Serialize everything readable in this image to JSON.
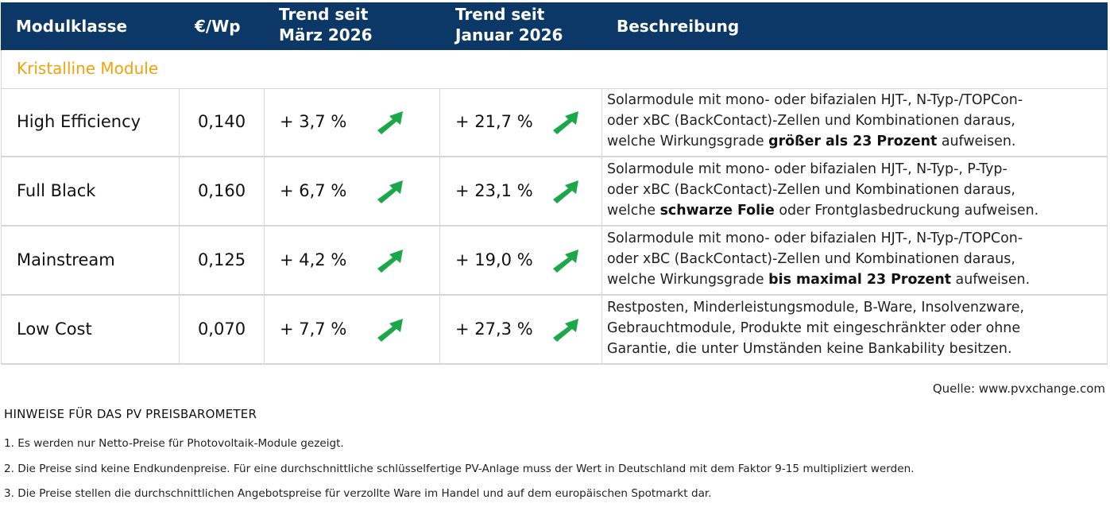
{
  "header": {
    "col_class": "Modulklasse",
    "col_price": "€/Wp",
    "col_trend1_line1": "Trend seit",
    "col_trend1_line2": "März 2026",
    "col_trend2_line1": "Trend seit",
    "col_trend2_line2": "Januar 2026",
    "col_desc": "Beschreibung"
  },
  "section": {
    "title": "Kristalline Module"
  },
  "rows": [
    {
      "name": "High Efficiency",
      "price": "0,140",
      "trend_march": "+ 3,7 %",
      "trend_january": "+ 21,7 %",
      "desc_l1": "Solarmodule mit mono- oder bifazialen HJT-, N-Typ-/TOPCon-",
      "desc_l2": "oder xBC (BackContact)-Zellen und Kombinationen daraus,",
      "desc_l3a": "welche Wirkungsgrade ",
      "desc_l3b": "größer als 23 Prozent",
      "desc_l3c": " aufweisen."
    },
    {
      "name": "Full Black",
      "price": "0,160",
      "trend_march": "+ 6,7 %",
      "trend_january": "+ 23,1 %",
      "desc_l1": "Solarmodule mit mono- oder bifazialen HJT-, N-Typ-, P-Typ-",
      "desc_l2": "oder xBC (BackContact)-Zellen und Kombinationen daraus,",
      "desc_l3a": "welche ",
      "desc_l3b": "schwarze Folie",
      "desc_l3c": " oder Frontglasbedruckung aufweisen."
    },
    {
      "name": "Mainstream",
      "price": "0,125",
      "trend_march": "+ 4,2 %",
      "trend_january": "+ 19,0 %",
      "desc_l1": "Solarmodule mit mono- oder bifazialen HJT-, N-Typ-/TOPCon-",
      "desc_l2": "oder xBC (BackContact)-Zellen und Kombinationen daraus,",
      "desc_l3a": "welche Wirkungsgrade ",
      "desc_l3b": "bis maximal 23 Prozent",
      "desc_l3c": " aufweisen."
    },
    {
      "name": "Low Cost",
      "price": "0,070",
      "trend_march": "+ 7,7 %",
      "trend_january": "+ 27,3 %",
      "desc_l1": "Restposten, Minderleistungsmodule, B-Ware, Insolvenzware,",
      "desc_l2": "Gebrauchtmodule, Produkte mit eingeschränkter oder ohne",
      "desc_l3a": "Garantie, die unter Umständen keine Bankability besitzen.",
      "desc_l3b": "",
      "desc_l3c": ""
    }
  ],
  "source": "Quelle: www.pvxchange.com",
  "notes": {
    "title": "HINWEISE FÜR DAS PV PREISBAROMETER",
    "items": [
      "1.  Es werden nur Netto-Preise für Photovoltaik-Module gezeigt.",
      "2. Die Preise sind keine Endkundenpreise. Für eine durchschnittliche schlüsselfertige PV-Anlage muss der Wert in Deutschland mit dem Faktor 9-15 multipliziert werden.",
      "3. Die Preise stellen die durchschnittlichen Angebotspreise für verzollte Ware im Handel und auf dem europäischen Spotmarkt dar."
    ]
  },
  "colors": {
    "header_bg": "#0c3868",
    "section_title": "#f0a30a",
    "trend_arrow": "#1aa84a",
    "grid_line": "#d6d6d6"
  },
  "icons": {
    "trend": "arrow-up-right-icon"
  }
}
